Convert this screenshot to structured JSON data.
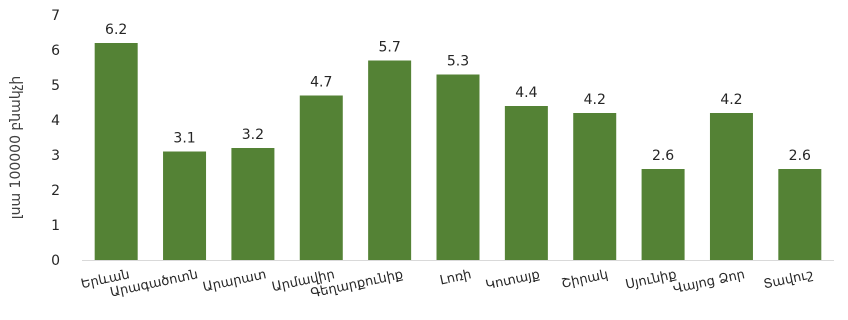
{
  "chart_data": {
    "type": "bar",
    "title": "",
    "xlabel": "",
    "ylabel": "լսա 100000 բնակչի",
    "categories": [
      "Երևան",
      "Արագածոտն",
      "Արարատ",
      "Արմավիր",
      "Գեղարքունիք",
      "Լոռի",
      "Կոտայք",
      "Շիրակ",
      "Սյունիք",
      "Վայոց Ձոր",
      "Տավուշ"
    ],
    "values": [
      6.2,
      3.1,
      3.2,
      4.7,
      5.7,
      5.3,
      4.4,
      4.2,
      2.6,
      4.2,
      2.6
    ],
    "data_labels": [
      "6.2",
      "3.1",
      "3.2",
      "4.7",
      "5.7",
      "5.3",
      "4.4",
      "4.2",
      "2.6",
      "4.2",
      "2.6"
    ],
    "ylim": [
      0,
      7
    ],
    "yticks": [
      0,
      1,
      2,
      3,
      4,
      5,
      6,
      7
    ],
    "grid": false,
    "legend": "none",
    "bar_color": "#548235"
  }
}
